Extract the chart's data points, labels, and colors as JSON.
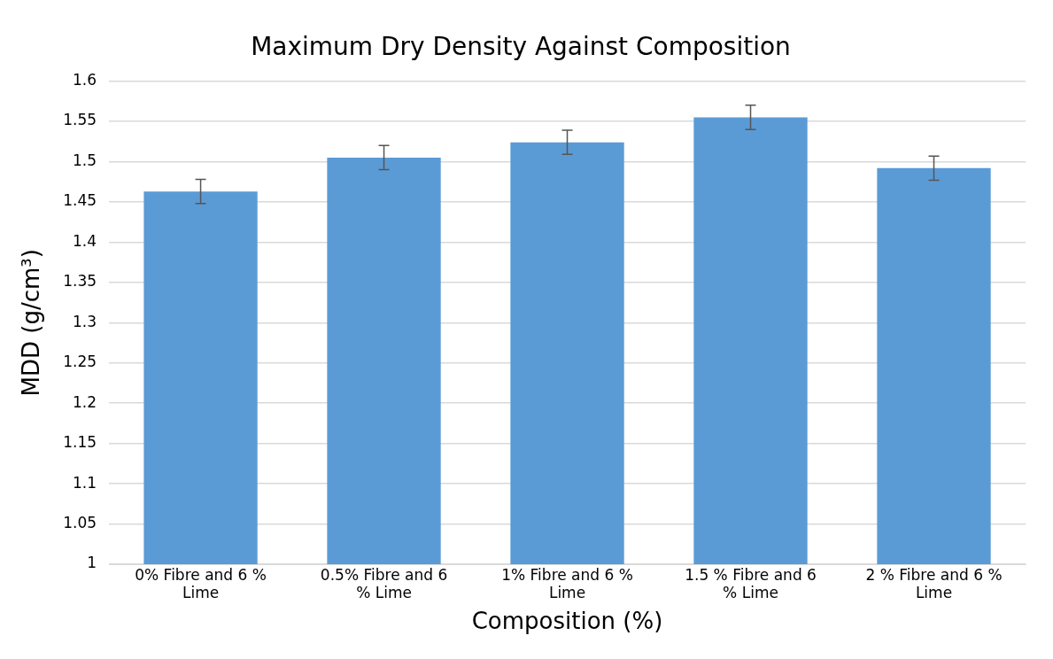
{
  "chart_data": {
    "type": "bar",
    "title": "Maximum Dry Density Against Composition",
    "xlabel": "Composition (%)",
    "ylabel": "MDD (g/cm³)",
    "categories": [
      "0% Fibre and 6 % Lime",
      "0.5% Fibre and 6 % Lime",
      "1% Fibre and 6 % Lime",
      "1.5 % Fibre and 6 % Lime",
      "2 % Fibre and 6 % Lime"
    ],
    "values": [
      1.463,
      1.505,
      1.524,
      1.555,
      1.492
    ],
    "errors": [
      0.015,
      0.015,
      0.015,
      0.015,
      0.015
    ],
    "color": "#5b9bd5",
    "ylim": [
      1,
      1.6
    ],
    "yticks": [
      1,
      1.05,
      1.1,
      1.15,
      1.2,
      1.25,
      1.3,
      1.35,
      1.4,
      1.45,
      1.5,
      1.55,
      1.6
    ],
    "grid": "y",
    "legend": false
  }
}
